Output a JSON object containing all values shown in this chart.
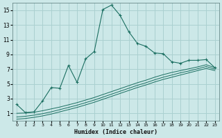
{
  "xlabel": "Humidex (Indice chaleur)",
  "bg_color": "#cce8e8",
  "grid_color": "#aad0d0",
  "line_color": "#1a6e60",
  "xlim": [
    -0.5,
    23.5
  ],
  "ylim": [
    0,
    16
  ],
  "xticks": [
    0,
    1,
    2,
    3,
    4,
    5,
    6,
    7,
    8,
    9,
    10,
    11,
    12,
    13,
    14,
    15,
    16,
    17,
    18,
    19,
    20,
    21,
    22,
    23
  ],
  "yticks": [
    1,
    3,
    5,
    7,
    9,
    11,
    13,
    15
  ],
  "main_x": [
    0,
    1,
    2,
    3,
    4,
    5,
    6,
    7,
    8,
    9,
    10,
    11,
    12,
    13,
    14,
    15,
    16,
    17,
    18,
    19,
    20,
    21,
    22,
    23
  ],
  "main_y": [
    2.2,
    1.1,
    1.2,
    2.7,
    4.5,
    4.4,
    7.5,
    5.2,
    8.4,
    9.4,
    15.1,
    15.7,
    14.3,
    12.1,
    10.5,
    10.1,
    9.2,
    9.1,
    8.0,
    7.8,
    8.2,
    8.2,
    8.3,
    7.2
  ],
  "line2_x": [
    0,
    1,
    2,
    3,
    4,
    5,
    6,
    7,
    8,
    9,
    10,
    11,
    12,
    13,
    14,
    15,
    16,
    17,
    18,
    19,
    20,
    21,
    22,
    23
  ],
  "line2_y": [
    1.0,
    1.05,
    1.15,
    1.35,
    1.6,
    1.85,
    2.15,
    2.45,
    2.8,
    3.15,
    3.55,
    3.95,
    4.35,
    4.75,
    5.15,
    5.5,
    5.9,
    6.25,
    6.55,
    6.8,
    7.05,
    7.3,
    7.6,
    7.2
  ],
  "line3_x": [
    0,
    1,
    2,
    3,
    4,
    5,
    6,
    7,
    8,
    9,
    10,
    11,
    12,
    13,
    14,
    15,
    16,
    17,
    18,
    19,
    20,
    21,
    22,
    23
  ],
  "line3_y": [
    0.5,
    0.6,
    0.75,
    0.95,
    1.2,
    1.5,
    1.8,
    2.1,
    2.45,
    2.8,
    3.2,
    3.6,
    4.0,
    4.4,
    4.8,
    5.15,
    5.55,
    5.9,
    6.2,
    6.5,
    6.75,
    7.05,
    7.35,
    7.0
  ],
  "line4_x": [
    0,
    1,
    2,
    3,
    4,
    5,
    6,
    7,
    8,
    9,
    10,
    11,
    12,
    13,
    14,
    15,
    16,
    17,
    18,
    19,
    20,
    21,
    22,
    23
  ],
  "line4_y": [
    0.2,
    0.3,
    0.45,
    0.65,
    0.9,
    1.2,
    1.5,
    1.8,
    2.15,
    2.5,
    2.9,
    3.3,
    3.7,
    4.1,
    4.5,
    4.85,
    5.25,
    5.6,
    5.9,
    6.2,
    6.5,
    6.8,
    7.1,
    6.8
  ]
}
